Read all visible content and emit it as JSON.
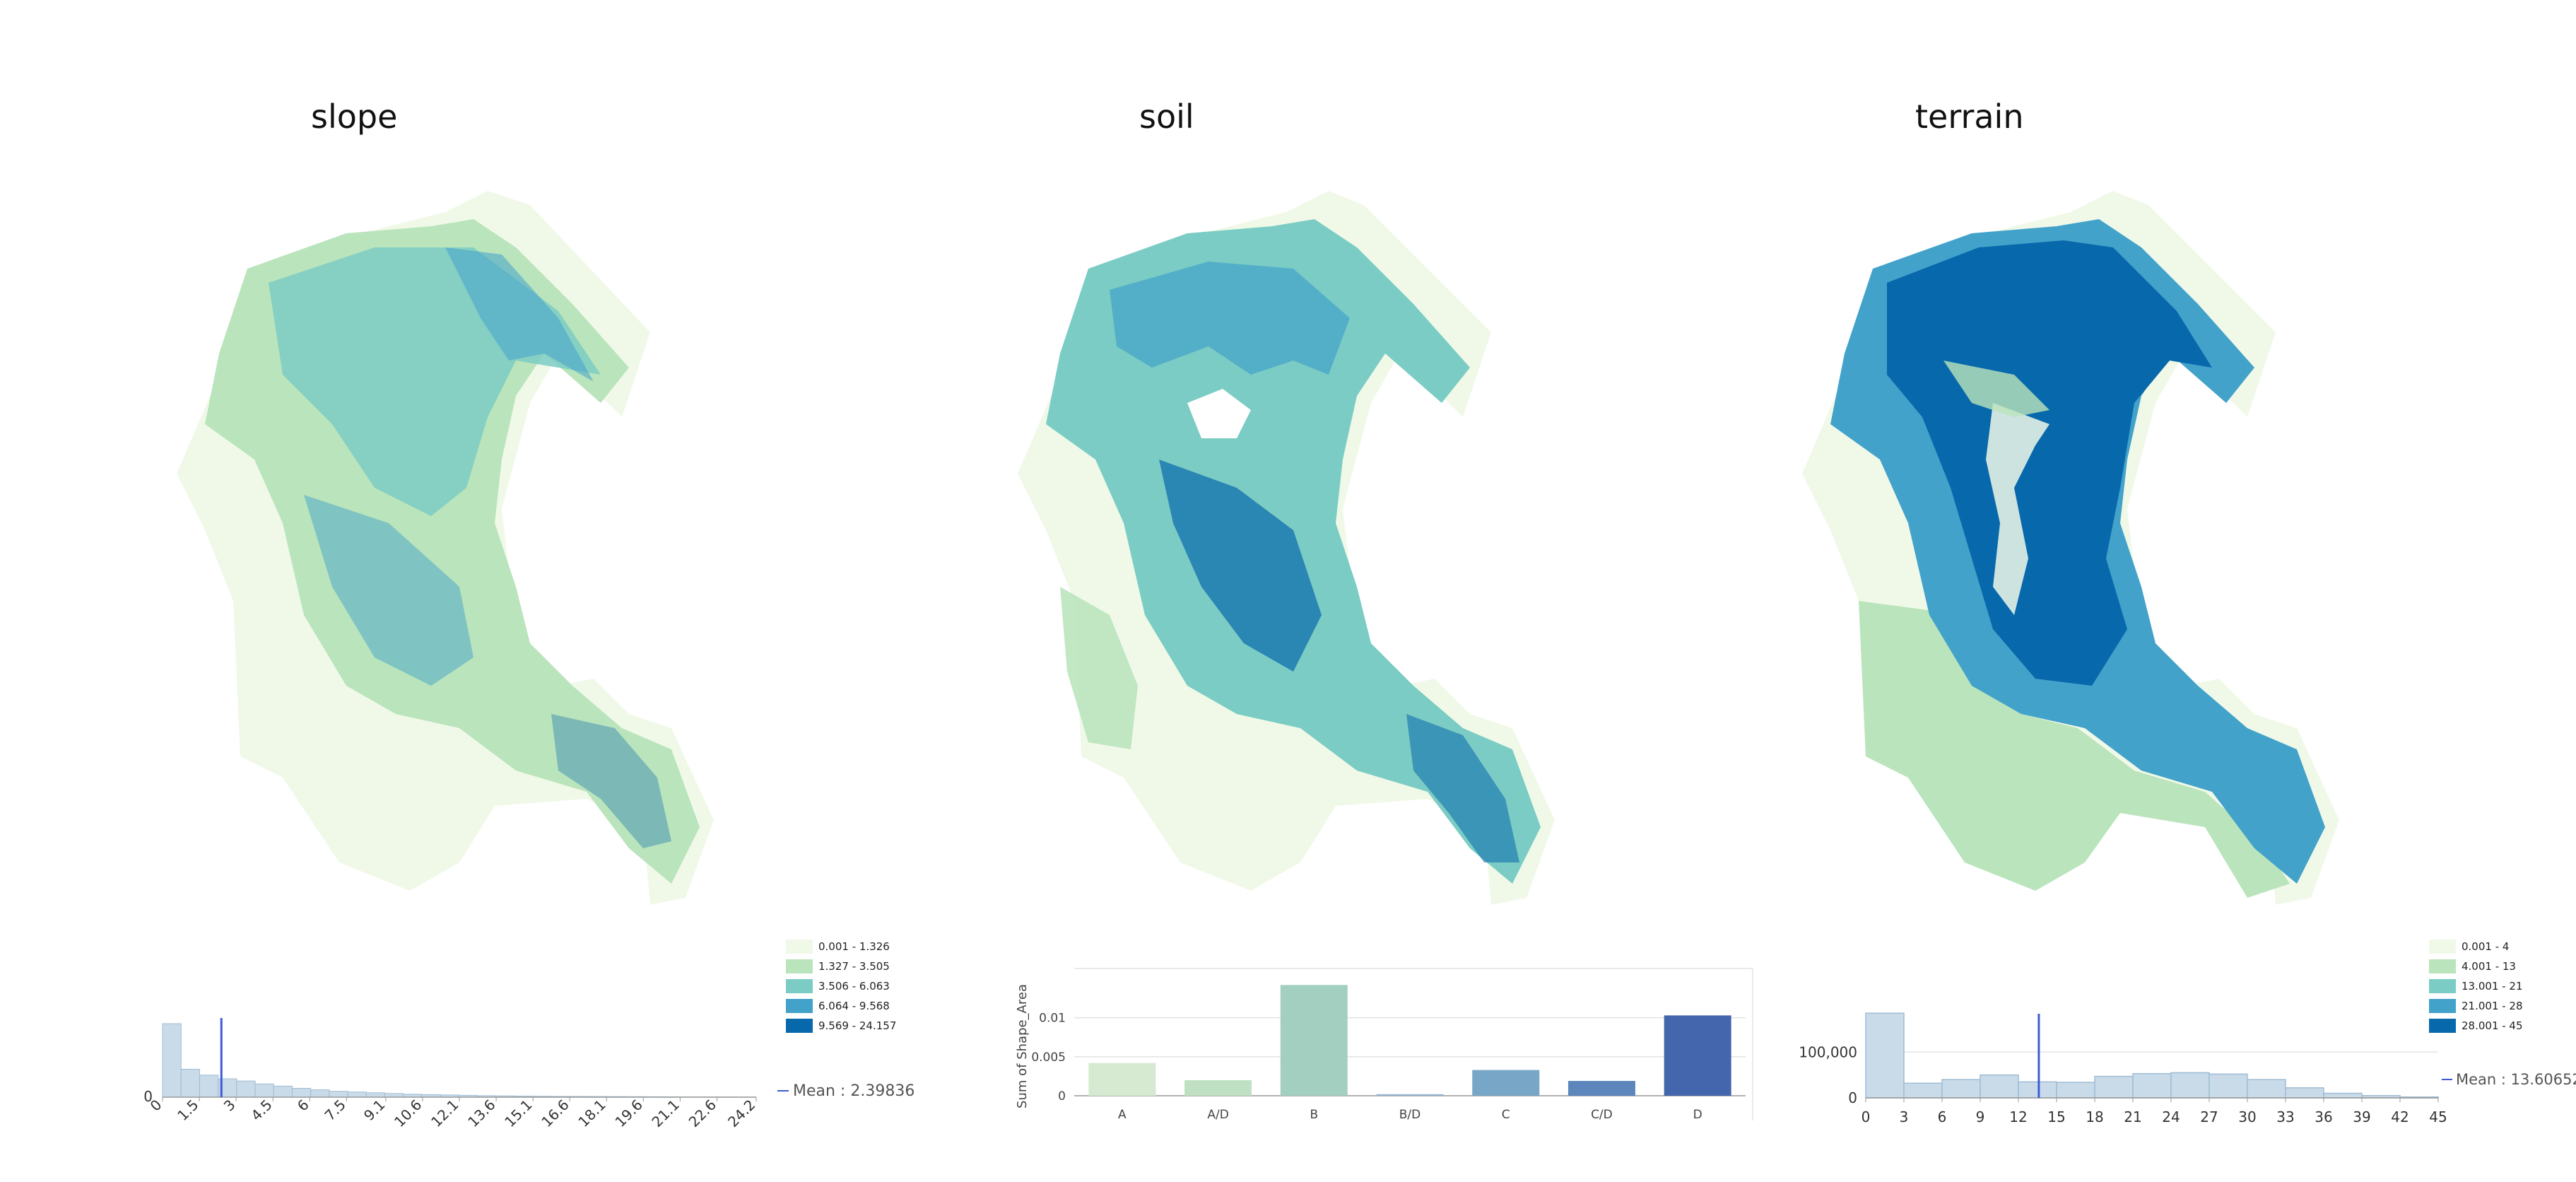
{
  "colors": {
    "class1": "#f0f9e8",
    "class2": "#bae4bc",
    "class3": "#7bccc4",
    "class4": "#43a2ca",
    "class5": "#0868ac",
    "hist_fill": "#c9dbe9",
    "hist_stroke": "#9fbcd4",
    "mean_line": "#3d5bd6",
    "soil_bars": [
      "#d6ead2",
      "#bfe0c2",
      "#a3cfc1",
      "#98b5d4",
      "#78a6c6",
      "#5d86bd",
      "#4466ad"
    ]
  },
  "panels": {
    "slope": {
      "title": "slope",
      "legend": [
        "0.001 - 1.326",
        "1.327 - 3.505",
        "3.506 - 6.063",
        "6.064 - 9.568",
        "9.569 - 24.157"
      ],
      "mean_label": "Mean : 2.39836"
    },
    "soil": {
      "title": "soil"
    },
    "terrain": {
      "title": "terrain",
      "legend": [
        "0.001 - 4",
        "4.001 - 13",
        "13.001 - 21",
        "21.001 - 28",
        "28.001 - 45"
      ],
      "mean_label": "Mean : 13.60652"
    }
  },
  "chart_data": [
    {
      "type": "bar",
      "chart": "slope histogram",
      "x_ticks": [
        "0",
        "1.5",
        "3",
        "4.5",
        "6",
        "7.5",
        "9.1",
        "10.6",
        "12.1",
        "13.6",
        "15.1",
        "16.6",
        "18.1",
        "19.6",
        "21.1",
        "22.6",
        "24.2"
      ],
      "y_ticks": [
        "0"
      ],
      "bin_width": 0.755,
      "xlim": [
        0,
        24.2
      ],
      "values": [
        100,
        38,
        30,
        25,
        22,
        18,
        15,
        12,
        10,
        8,
        7,
        6,
        5,
        4,
        3.5,
        3,
        2.5,
        2,
        1.8,
        1.5,
        1.3,
        1.1,
        1,
        0.9,
        0.8,
        0.7,
        0.6,
        0.5,
        0.4,
        0.35,
        0.3,
        0.25
      ],
      "mean": 2.39836,
      "grid": false
    },
    {
      "type": "bar",
      "chart": "soil bar chart",
      "categories": [
        "A",
        "A/D",
        "B",
        "B/D",
        "C",
        "C/D",
        "D"
      ],
      "values": [
        0.0042,
        0.002,
        0.0142,
        0.0002,
        0.0033,
        0.0019,
        0.0103
      ],
      "ylabel": "Sum of Shape_Area",
      "y_ticks": [
        "0",
        "0.005",
        "0.01"
      ],
      "ylim": [
        0,
        0.0145
      ],
      "grid": true
    },
    {
      "type": "bar",
      "chart": "terrain histogram",
      "x_ticks": [
        "0",
        "3",
        "6",
        "9",
        "12",
        "15",
        "18",
        "21",
        "24",
        "27",
        "30",
        "33",
        "36",
        "39",
        "42",
        "45"
      ],
      "y_ticks": [
        "0",
        "100,000"
      ],
      "bin_width": 3,
      "xlim": [
        0,
        45
      ],
      "values": [
        185000,
        32000,
        40000,
        50000,
        35000,
        34000,
        47000,
        53000,
        55000,
        52000,
        40000,
        22000,
        10000,
        5000,
        2000
      ],
      "mean": 13.60652,
      "grid": true
    }
  ]
}
